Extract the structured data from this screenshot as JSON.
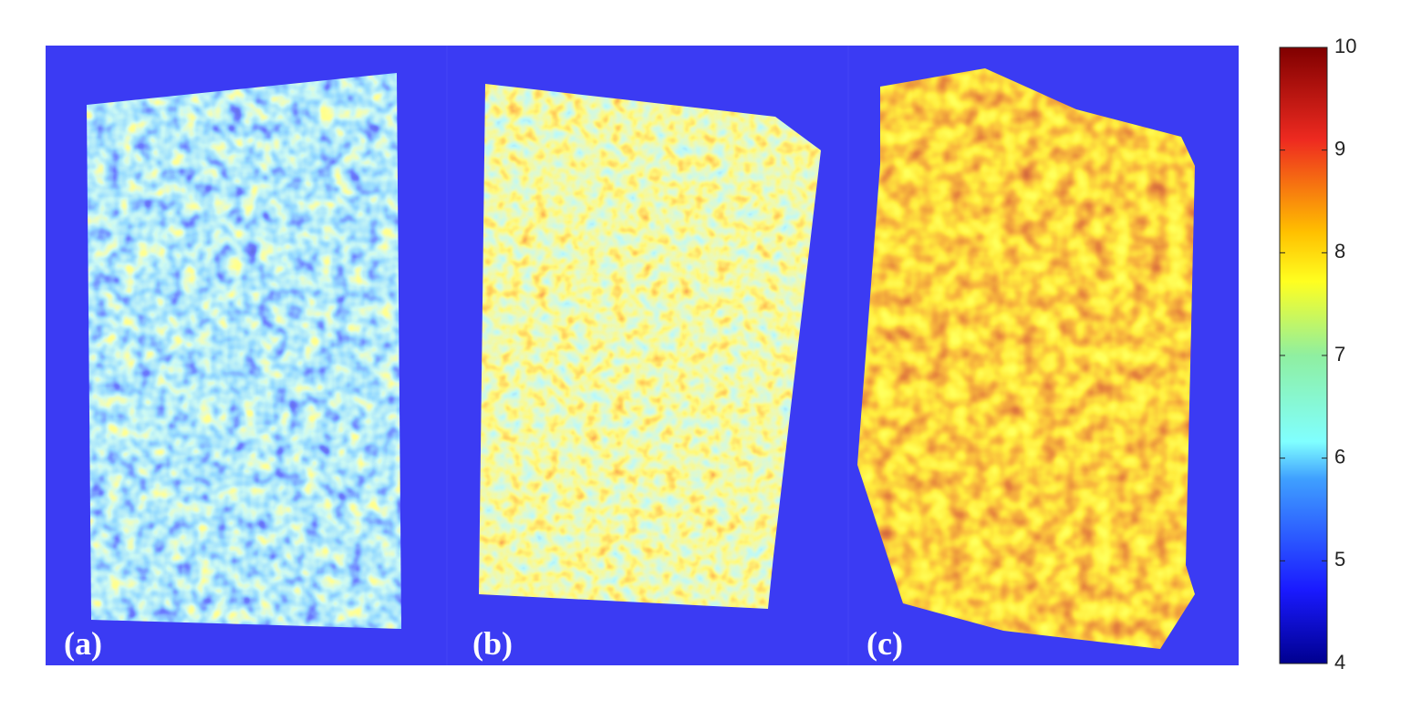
{
  "chart_data": {
    "type": "heatmap",
    "panels": [
      "(a)",
      "(b)",
      "(c)"
    ],
    "colormap": "jet",
    "clim": [
      4,
      10
    ],
    "colorbar_ticks": [
      4,
      5,
      6,
      7,
      8,
      9,
      10
    ]
  }
}
